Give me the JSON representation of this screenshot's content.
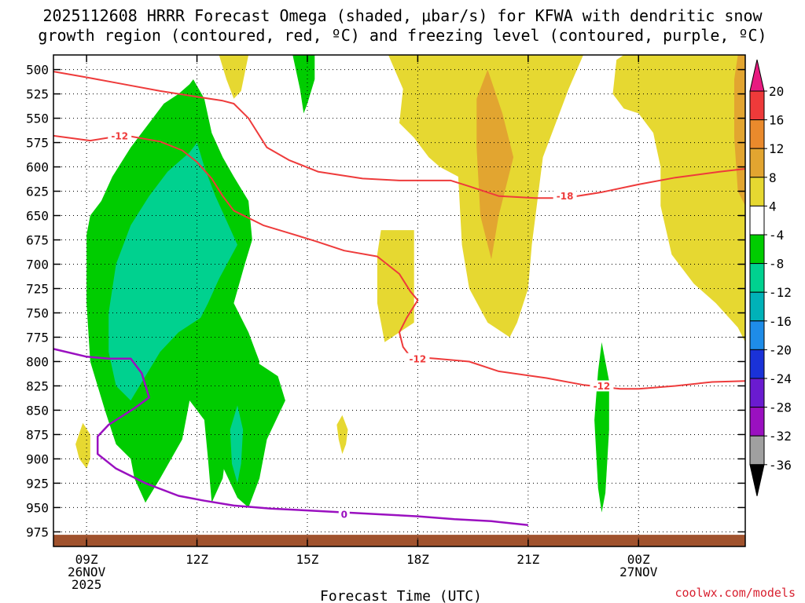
{
  "chart_data": {
    "type": "heatmap",
    "title_line1": "2025112608 HRRR Forecast Omega (shaded, μbar/s) for KFWA with dendritic snow",
    "title_line2": "growth region (contoured, red, ºC) and freezing level (contoured, purple, ºC)",
    "xlabel": "Forecast Time (UTC)",
    "ylabel": "Pressure (mb)",
    "credit": "coolwx.com/models",
    "x_range_hours": [
      8.1,
      26.9
    ],
    "y_range_mb": [
      485,
      990
    ],
    "y_ticks": [
      500,
      525,
      550,
      575,
      600,
      625,
      650,
      675,
      700,
      725,
      750,
      775,
      800,
      825,
      850,
      875,
      900,
      925,
      950,
      975
    ],
    "x_ticks": [
      {
        "hour": 9,
        "lines": [
          "09Z",
          "26NOV",
          "2025"
        ]
      },
      {
        "hour": 12,
        "lines": [
          "12Z"
        ]
      },
      {
        "hour": 15,
        "lines": [
          "15Z"
        ]
      },
      {
        "hour": 18,
        "lines": [
          "18Z"
        ]
      },
      {
        "hour": 21,
        "lines": [
          "21Z"
        ]
      },
      {
        "hour": 24,
        "lines": [
          "00Z",
          "27NOV"
        ]
      }
    ],
    "colorbar": {
      "labels": [
        "20",
        "16",
        "12",
        "8",
        "4",
        "-4",
        "-8",
        "-12",
        "-16",
        "-20",
        "-24",
        "-28",
        "-32",
        "-36"
      ],
      "bins": [
        {
          "from": 16,
          "to": 20,
          "color": "#ee3a3a"
        },
        {
          "from": 12,
          "to": 16,
          "color": "#ea8a2c"
        },
        {
          "from": 8,
          "to": 12,
          "color": "#e2a530"
        },
        {
          "from": 4,
          "to": 8,
          "color": "#e6d831"
        },
        {
          "from": -4,
          "to": 4,
          "color": "#ffffff"
        },
        {
          "from": -8,
          "to": -4,
          "color": "#00cc00"
        },
        {
          "from": -12,
          "to": -8,
          "color": "#00d18f"
        },
        {
          "from": -16,
          "to": -12,
          "color": "#00b2b8"
        },
        {
          "from": -20,
          "to": -16,
          "color": "#1e8ce8"
        },
        {
          "from": -24,
          "to": -20,
          "color": "#1a32d8"
        },
        {
          "from": -28,
          "to": -24,
          "color": "#6a1bd0"
        },
        {
          "from": -32,
          "to": -28,
          "color": "#9a10c0"
        },
        {
          "from": -36,
          "to": -32,
          "color": "#a0a0a0"
        }
      ],
      "top_arrow_color": "#e81a80",
      "bottom_arrow_color": "#000000"
    },
    "omega_regions": [
      {
        "value": 6,
        "color": "#e6d831",
        "points": [
          [
            12.6,
            485
          ],
          [
            13.4,
            485
          ],
          [
            13.2,
            522
          ],
          [
            13.0,
            530
          ],
          [
            12.8,
            510
          ]
        ]
      },
      {
        "value": 6,
        "color": "#e6d831",
        "points": [
          [
            17.2,
            485
          ],
          [
            20.4,
            485
          ],
          [
            21.7,
            485
          ],
          [
            22.5,
            485
          ],
          [
            22.1,
            520
          ],
          [
            21.4,
            590
          ],
          [
            21.1,
            680
          ],
          [
            21.0,
            725
          ],
          [
            20.7,
            760
          ],
          [
            20.5,
            775
          ],
          [
            19.9,
            760
          ],
          [
            19.4,
            725
          ],
          [
            19.2,
            680
          ],
          [
            19.1,
            610
          ],
          [
            18.6,
            600
          ],
          [
            18.3,
            590
          ],
          [
            17.9,
            570
          ],
          [
            17.5,
            555
          ],
          [
            17.6,
            520
          ]
        ]
      },
      {
        "value": 6,
        "color": "#e6d831",
        "points": [
          [
            23.6,
            485
          ],
          [
            26.9,
            485
          ],
          [
            26.9,
            780
          ],
          [
            26.7,
            765
          ],
          [
            26.1,
            740
          ],
          [
            25.5,
            720
          ],
          [
            24.9,
            690
          ],
          [
            24.6,
            640
          ],
          [
            24.6,
            600
          ],
          [
            24.4,
            565
          ],
          [
            24.0,
            545
          ],
          [
            23.6,
            540
          ],
          [
            23.3,
            525
          ],
          [
            23.4,
            490
          ]
        ]
      },
      {
        "value": 6,
        "color": "#e6d831",
        "points": [
          [
            17.0,
            665
          ],
          [
            17.9,
            665
          ],
          [
            17.9,
            760
          ],
          [
            17.1,
            780
          ],
          [
            16.9,
            740
          ],
          [
            16.9,
            690
          ]
        ]
      },
      {
        "value": 6,
        "color": "#e6d831",
        "points": [
          [
            15.95,
            855
          ],
          [
            16.1,
            870
          ],
          [
            16.05,
            885
          ],
          [
            15.95,
            895
          ],
          [
            15.85,
            880
          ],
          [
            15.8,
            865
          ]
        ]
      },
      {
        "value": 6,
        "color": "#e6d831",
        "points": [
          [
            8.9,
            863
          ],
          [
            9.1,
            875
          ],
          [
            9.1,
            900
          ],
          [
            9.0,
            910
          ],
          [
            8.8,
            900
          ],
          [
            8.7,
            885
          ]
        ]
      },
      {
        "value": 10,
        "color": "#e2a530",
        "points": [
          [
            19.9,
            500
          ],
          [
            20.3,
            545
          ],
          [
            20.6,
            590
          ],
          [
            20.2,
            650
          ],
          [
            20.0,
            695
          ],
          [
            19.7,
            650
          ],
          [
            19.6,
            580
          ],
          [
            19.6,
            530
          ]
        ]
      },
      {
        "value": 10,
        "color": "#e2a530",
        "points": [
          [
            26.7,
            485
          ],
          [
            26.9,
            485
          ],
          [
            26.9,
            640
          ],
          [
            26.7,
            625
          ],
          [
            26.6,
            570
          ],
          [
            26.6,
            510
          ]
        ]
      },
      {
        "value": -6,
        "color": "#00cc00",
        "points": [
          [
            14.6,
            485
          ],
          [
            15.2,
            485
          ],
          [
            15.2,
            510
          ],
          [
            15.0,
            535
          ],
          [
            14.9,
            545
          ],
          [
            14.8,
            520
          ]
        ]
      },
      {
        "value": -6,
        "color": "#00cc00",
        "points": [
          [
            11.9,
            510
          ],
          [
            12.2,
            530
          ],
          [
            12.4,
            565
          ],
          [
            12.7,
            590
          ],
          [
            13.0,
            610
          ],
          [
            13.4,
            635
          ],
          [
            13.5,
            675
          ],
          [
            13.3,
            700
          ],
          [
            13.0,
            740
          ],
          [
            13.4,
            770
          ],
          [
            13.6,
            790
          ],
          [
            13.7,
            800
          ],
          [
            13.5,
            830
          ],
          [
            13.1,
            870
          ],
          [
            12.8,
            890
          ],
          [
            12.7,
            920
          ],
          [
            12.4,
            945
          ],
          [
            12.3,
            900
          ],
          [
            12.2,
            860
          ],
          [
            11.8,
            840
          ],
          [
            11.6,
            880
          ],
          [
            11.0,
            920
          ],
          [
            10.6,
            945
          ],
          [
            10.3,
            920
          ],
          [
            10.2,
            900
          ],
          [
            9.8,
            885
          ],
          [
            9.5,
            850
          ],
          [
            9.1,
            800
          ],
          [
            9.0,
            740
          ],
          [
            9.0,
            670
          ],
          [
            9.1,
            650
          ],
          [
            9.4,
            635
          ],
          [
            9.7,
            610
          ],
          [
            10.2,
            580
          ],
          [
            10.6,
            560
          ],
          [
            11.1,
            535
          ],
          [
            11.5,
            525
          ],
          [
            11.8,
            515
          ]
        ]
      },
      {
        "value": -6,
        "color": "#00cc00",
        "points": [
          [
            12.8,
            775
          ],
          [
            13.2,
            790
          ],
          [
            13.6,
            800
          ],
          [
            14.2,
            815
          ],
          [
            14.4,
            840
          ],
          [
            13.9,
            880
          ],
          [
            13.7,
            920
          ],
          [
            13.4,
            950
          ],
          [
            13.1,
            940
          ],
          [
            12.6,
            900
          ],
          [
            12.3,
            880
          ],
          [
            12.5,
            820
          ]
        ]
      },
      {
        "value": -6,
        "color": "#00cc00",
        "points": [
          [
            23.0,
            780
          ],
          [
            23.2,
            820
          ],
          [
            23.2,
            870
          ],
          [
            23.1,
            935
          ],
          [
            23.0,
            955
          ],
          [
            22.9,
            930
          ],
          [
            22.8,
            860
          ],
          [
            22.9,
            810
          ]
        ]
      },
      {
        "value": -10,
        "color": "#00d18f",
        "points": [
          [
            12.0,
            575
          ],
          [
            12.2,
            600
          ],
          [
            12.5,
            630
          ],
          [
            12.8,
            655
          ],
          [
            13.1,
            680
          ],
          [
            12.6,
            715
          ],
          [
            12.3,
            740
          ],
          [
            12.1,
            755
          ],
          [
            11.5,
            770
          ],
          [
            11.0,
            790
          ],
          [
            10.6,
            815
          ],
          [
            10.2,
            840
          ],
          [
            9.8,
            825
          ],
          [
            9.6,
            790
          ],
          [
            9.6,
            750
          ],
          [
            9.8,
            700
          ],
          [
            10.2,
            660
          ],
          [
            10.7,
            630
          ],
          [
            11.2,
            605
          ],
          [
            11.8,
            585
          ]
        ]
      },
      {
        "value": -10,
        "color": "#00d18f",
        "points": [
          [
            13.1,
            845
          ],
          [
            13.25,
            870
          ],
          [
            13.2,
            905
          ],
          [
            13.1,
            925
          ],
          [
            12.95,
            905
          ],
          [
            12.9,
            870
          ]
        ]
      }
    ],
    "contours_red": [
      {
        "label": "-18",
        "points": [
          [
            8.1,
            502
          ],
          [
            9.0,
            508
          ],
          [
            10.0,
            515
          ],
          [
            11.0,
            522
          ],
          [
            12.0,
            528
          ],
          [
            12.7,
            532
          ],
          [
            13.0,
            535
          ],
          [
            13.4,
            550
          ],
          [
            13.9,
            580
          ],
          [
            14.5,
            593
          ],
          [
            15.3,
            605
          ],
          [
            16.5,
            612
          ],
          [
            17.5,
            614
          ],
          [
            18.0,
            614
          ],
          [
            18.9,
            614
          ],
          [
            19.4,
            620
          ],
          [
            20.2,
            630
          ],
          [
            21.2,
            632
          ],
          [
            22.0,
            632
          ],
          [
            23.0,
            626
          ],
          [
            24.0,
            618
          ],
          [
            25.0,
            611
          ],
          [
            26.2,
            605
          ],
          [
            26.9,
            602
          ]
        ]
      },
      {
        "label": "-12",
        "points": [
          [
            8.1,
            568
          ],
          [
            9.1,
            573
          ],
          [
            9.6,
            570
          ],
          [
            10.1,
            568
          ],
          [
            11.0,
            574
          ],
          [
            11.6,
            583
          ],
          [
            12.0,
            595
          ],
          [
            12.4,
            612
          ],
          [
            12.7,
            630
          ],
          [
            13.0,
            645
          ],
          [
            13.8,
            660
          ],
          [
            14.5,
            668
          ],
          [
            15.2,
            676
          ],
          [
            16.0,
            686
          ],
          [
            16.9,
            692
          ],
          [
            17.5,
            710
          ],
          [
            17.8,
            728
          ],
          [
            18.0,
            737
          ],
          [
            17.7,
            755
          ],
          [
            17.5,
            770
          ],
          [
            17.6,
            785
          ],
          [
            17.8,
            795
          ],
          [
            18.5,
            797
          ],
          [
            19.4,
            800
          ],
          [
            20.2,
            810
          ],
          [
            21.5,
            817
          ],
          [
            22.5,
            824
          ],
          [
            23.5,
            828
          ],
          [
            24.0,
            828
          ],
          [
            25.0,
            825
          ],
          [
            26.0,
            821
          ],
          [
            26.9,
            820
          ]
        ]
      }
    ],
    "contours_purple": [
      {
        "label": "0",
        "points": [
          [
            8.1,
            787
          ],
          [
            9.0,
            795
          ],
          [
            9.6,
            797
          ],
          [
            10.2,
            797
          ],
          [
            10.5,
            812
          ],
          [
            10.7,
            837
          ],
          [
            10.3,
            848
          ],
          [
            9.6,
            865
          ],
          [
            9.3,
            877
          ],
          [
            9.3,
            895
          ],
          [
            9.8,
            910
          ],
          [
            10.6,
            925
          ],
          [
            11.5,
            938
          ],
          [
            12.2,
            943
          ],
          [
            13.0,
            948
          ],
          [
            14.0,
            951
          ],
          [
            15.0,
            953
          ],
          [
            16.0,
            955
          ],
          [
            17.0,
            957
          ],
          [
            18.0,
            959
          ],
          [
            19.0,
            962
          ],
          [
            20.0,
            964
          ],
          [
            21.0,
            968
          ]
        ]
      }
    ],
    "contour_labels": [
      {
        "text": "-12",
        "color": "red",
        "hour": 9.9,
        "mb": 568
      },
      {
        "text": "-18",
        "color": "red",
        "hour": 22.0,
        "mb": 630
      },
      {
        "text": "-12",
        "color": "red",
        "hour": 18.0,
        "mb": 797
      },
      {
        "text": "-12",
        "color": "red",
        "hour": 23.0,
        "mb": 825
      },
      {
        "text": "0",
        "color": "purple",
        "hour": 16.0,
        "mb": 957
      }
    ],
    "terrain_top_mb": 978
  }
}
